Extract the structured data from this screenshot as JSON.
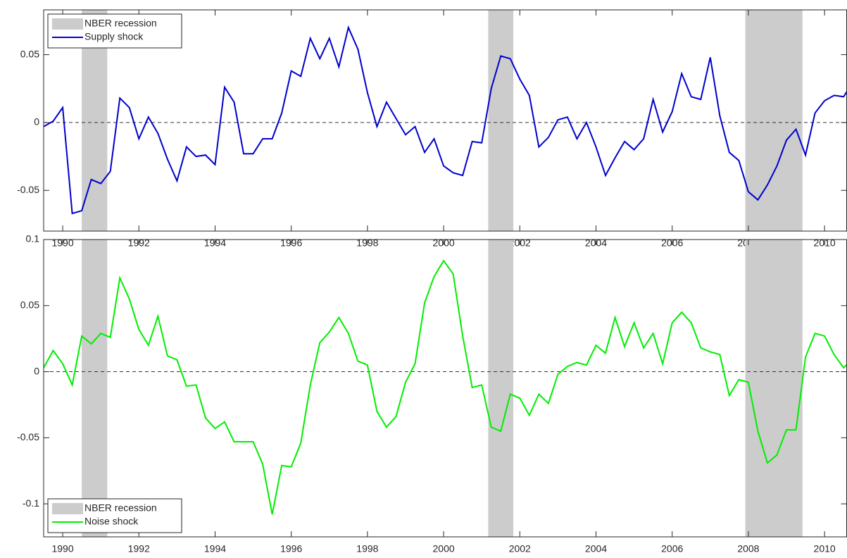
{
  "chart_data": [
    {
      "type": "line",
      "legend": "northwest",
      "zero_line": true,
      "recession_color": "#cccccc",
      "recession_label": "NBER recession",
      "recessions": [
        [
          1990.5,
          1991.17
        ],
        [
          2001.17,
          2001.83
        ],
        [
          2007.92,
          2009.42
        ]
      ],
      "xlim": [
        1989.5,
        2010.58
      ],
      "xticks": [
        1990,
        1992,
        1994,
        1996,
        1998,
        2000,
        2002,
        2004,
        2006,
        2008,
        2010
      ],
      "ylim": [
        -0.08,
        0.083
      ],
      "yticks": [
        -0.05,
        0,
        0.05
      ],
      "x": [
        1989.5,
        1989.75,
        1990,
        1990.25,
        1990.5,
        1990.75,
        1991,
        1991.25,
        1991.5,
        1991.75,
        1992,
        1992.25,
        1992.5,
        1992.75,
        1993,
        1993.25,
        1993.5,
        1993.75,
        1994,
        1994.25,
        1994.5,
        1994.75,
        1995,
        1995.25,
        1995.5,
        1995.75,
        1996,
        1996.25,
        1996.5,
        1996.75,
        1997,
        1997.25,
        1997.5,
        1997.75,
        1998,
        1998.25,
        1998.5,
        1998.75,
        1999,
        1999.25,
        1999.5,
        1999.75,
        2000,
        2000.25,
        2000.5,
        2000.75,
        2001,
        2001.25,
        2001.5,
        2001.75,
        2002,
        2002.25,
        2002.5,
        2002.75,
        2003,
        2003.25,
        2003.5,
        2003.75,
        2004,
        2004.25,
        2004.5,
        2004.75,
        2005,
        2005.25,
        2005.5,
        2005.75,
        2006,
        2006.25,
        2006.5,
        2006.75,
        2007,
        2007.25,
        2007.5,
        2007.75,
        2008,
        2008.25,
        2008.5,
        2008.75,
        2009,
        2009.25,
        2009.5,
        2009.75,
        2010,
        2010.25,
        2010.5,
        2010.75
      ],
      "series": [
        {
          "name": "Supply shock",
          "color": "#0000cc",
          "values": [
            -0.003,
            0.001,
            0.011,
            -0.067,
            -0.065,
            -0.042,
            -0.045,
            -0.036,
            0.018,
            0.011,
            -0.012,
            0.004,
            -0.008,
            -0.027,
            -0.043,
            -0.018,
            -0.025,
            -0.024,
            -0.031,
            0.026,
            0.015,
            -0.023,
            -0.023,
            -0.012,
            -0.012,
            0.007,
            0.038,
            0.034,
            0.062,
            0.047,
            0.062,
            0.041,
            0.07,
            0.054,
            0.022,
            -0.003,
            0.015,
            0.003,
            -0.009,
            -0.003,
            -0.022,
            -0.012,
            -0.032,
            -0.037,
            -0.039,
            -0.014,
            -0.015,
            0.025,
            0.049,
            0.047,
            0.032,
            0.02,
            -0.018,
            -0.011,
            0.002,
            0.004,
            -0.012,
            0.0,
            -0.018,
            -0.039,
            -0.026,
            -0.014,
            -0.02,
            -0.012,
            0.017,
            -0.007,
            0.008,
            0.036,
            0.019,
            0.017,
            0.048,
            0.005,
            -0.022,
            -0.028,
            -0.051,
            -0.057,
            -0.046,
            -0.032,
            -0.013,
            -0.005,
            -0.024,
            0.007,
            0.016,
            0.02,
            0.019,
            0.03
          ]
        }
      ]
    },
    {
      "type": "line",
      "legend": "southwest",
      "zero_line": true,
      "recession_color": "#cccccc",
      "recession_label": "NBER recession",
      "recessions": [
        [
          1990.5,
          1991.17
        ],
        [
          2001.17,
          2001.83
        ],
        [
          2007.92,
          2009.42
        ]
      ],
      "xlim": [
        1989.5,
        2010.58
      ],
      "xticks": [
        1990,
        1992,
        1994,
        1996,
        1998,
        2000,
        2002,
        2004,
        2006,
        2008,
        2010
      ],
      "ylim": [
        -0.125,
        0.1
      ],
      "yticks": [
        -0.1,
        -0.05,
        0,
        0.05,
        0.1
      ],
      "x": [
        1989.5,
        1989.75,
        1990,
        1990.25,
        1990.5,
        1990.75,
        1991,
        1991.25,
        1991.5,
        1991.75,
        1992,
        1992.25,
        1992.5,
        1992.75,
        1993,
        1993.25,
        1993.5,
        1993.75,
        1994,
        1994.25,
        1994.5,
        1994.75,
        1995,
        1995.25,
        1995.5,
        1995.75,
        1996,
        1996.25,
        1996.5,
        1996.75,
        1997,
        1997.25,
        1997.5,
        1997.75,
        1998,
        1998.25,
        1998.5,
        1998.75,
        1999,
        1999.25,
        1999.5,
        1999.75,
        2000,
        2000.25,
        2000.5,
        2000.75,
        2001,
        2001.25,
        2001.5,
        2001.75,
        2002,
        2002.25,
        2002.5,
        2002.75,
        2003,
        2003.25,
        2003.5,
        2003.75,
        2004,
        2004.25,
        2004.5,
        2004.75,
        2005,
        2005.25,
        2005.5,
        2005.75,
        2006,
        2006.25,
        2006.5,
        2006.75,
        2007,
        2007.25,
        2007.5,
        2007.75,
        2008,
        2008.25,
        2008.5,
        2008.75,
        2009,
        2009.25,
        2009.5,
        2009.75,
        2010,
        2010.25,
        2010.5,
        2010.75
      ],
      "series": [
        {
          "name": "Noise shock",
          "color": "#00ee00",
          "values": [
            0.003,
            0.016,
            0.006,
            -0.01,
            0.027,
            0.021,
            0.029,
            0.026,
            0.071,
            0.055,
            0.032,
            0.02,
            0.042,
            0.012,
            0.009,
            -0.011,
            -0.01,
            -0.035,
            -0.043,
            -0.038,
            -0.053,
            -0.053,
            -0.053,
            -0.07,
            -0.108,
            -0.071,
            -0.072,
            -0.054,
            -0.01,
            0.022,
            0.03,
            0.041,
            0.029,
            0.008,
            0.005,
            -0.03,
            -0.042,
            -0.034,
            -0.008,
            0.006,
            0.052,
            0.072,
            0.084,
            0.074,
            0.027,
            -0.012,
            -0.01,
            -0.042,
            -0.045,
            -0.017,
            -0.02,
            -0.033,
            -0.017,
            -0.024,
            -0.002,
            0.004,
            0.007,
            0.005,
            0.02,
            0.014,
            0.041,
            0.019,
            0.037,
            0.018,
            0.029,
            0.006,
            0.037,
            0.045,
            0.037,
            0.018,
            0.015,
            0.013,
            -0.018,
            -0.006,
            -0.008,
            -0.045,
            -0.069,
            -0.063,
            -0.044,
            -0.044,
            0.011,
            0.029,
            0.027,
            0.013,
            0.003,
            0.01
          ]
        }
      ]
    }
  ]
}
